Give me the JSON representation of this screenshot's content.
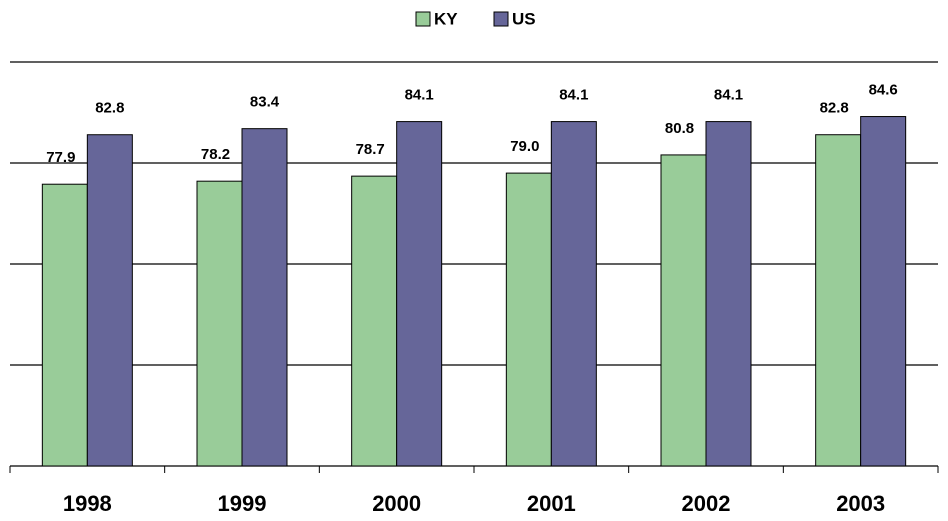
{
  "chart_data": {
    "type": "bar",
    "categories": [
      "1998",
      "1999",
      "2000",
      "2001",
      "2002",
      "2003"
    ],
    "series": [
      {
        "name": "KY",
        "color": "#99cc99",
        "values": [
          77.9,
          78.2,
          78.7,
          79.0,
          80.8,
          82.8
        ],
        "value_labels": [
          "77.9",
          "78.2",
          "78.7",
          "79.0",
          "80.8",
          "82.8"
        ]
      },
      {
        "name": "US",
        "color": "#666699",
        "values": [
          82.8,
          83.4,
          84.1,
          84.1,
          84.1,
          84.6
        ]
      }
    ],
    "ylim": [
      50,
      90
    ],
    "yticks": [
      50,
      60,
      70,
      80,
      90
    ],
    "grid": true,
    "legend": "top"
  }
}
